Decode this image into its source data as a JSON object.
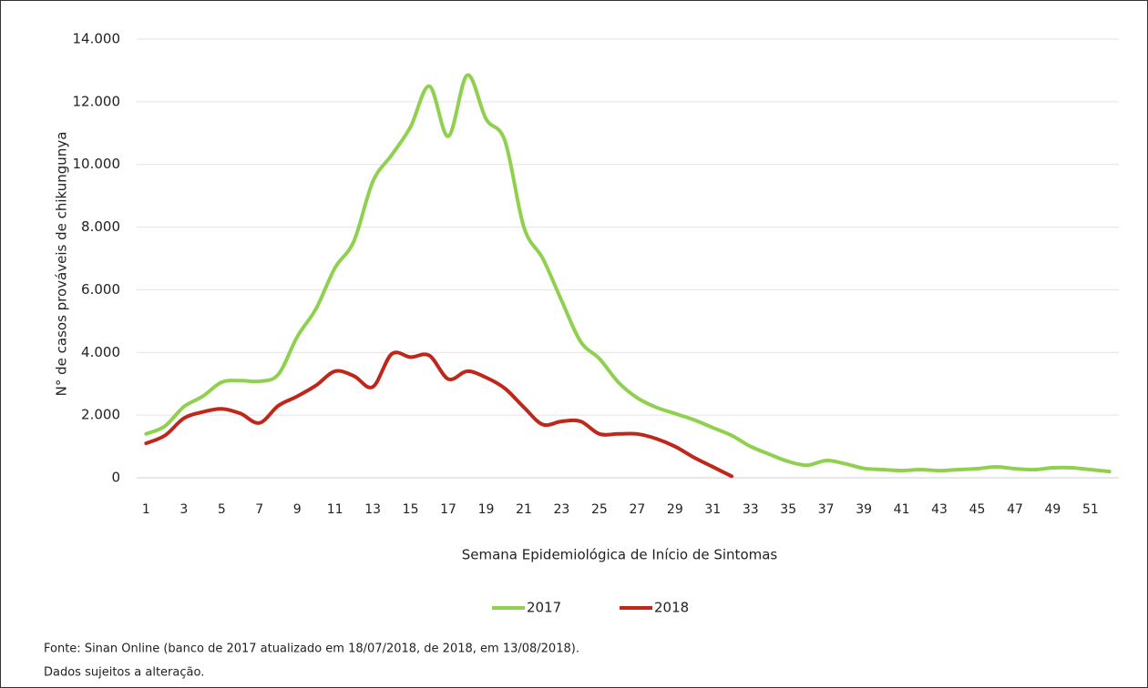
{
  "chart_data": {
    "type": "line",
    "y_label": "N° de casos prováveis de chikungunya",
    "x_label": "Semana Epidemiológica de Início de Sintomas",
    "x": [
      1,
      2,
      3,
      4,
      5,
      6,
      7,
      8,
      9,
      10,
      11,
      12,
      13,
      14,
      15,
      16,
      17,
      18,
      19,
      20,
      21,
      22,
      23,
      24,
      25,
      26,
      27,
      28,
      29,
      30,
      31,
      32,
      33,
      34,
      35,
      36,
      37,
      38,
      39,
      40,
      41,
      42,
      43,
      44,
      45,
      46,
      47,
      48,
      49,
      50,
      51,
      52
    ],
    "xlim": [
      0.5,
      52.5
    ],
    "xticks": [
      1,
      3,
      5,
      7,
      9,
      11,
      13,
      15,
      17,
      19,
      21,
      23,
      25,
      27,
      29,
      31,
      33,
      35,
      37,
      39,
      41,
      43,
      45,
      47,
      49,
      51
    ],
    "ylim": [
      0,
      14000
    ],
    "yticks": [
      0,
      {
        "value": 2000,
        "label": "2.000"
      },
      {
        "value": 4000,
        "label": "4.000"
      },
      {
        "value": 6000,
        "label": "6.000"
      },
      {
        "value": 8000,
        "label": "8.000"
      },
      {
        "value": 10000,
        "label": "10.000"
      },
      {
        "value": 12000,
        "label": "12.000"
      },
      {
        "value": 14000,
        "label": "14.000"
      }
    ],
    "grid": true,
    "legend": "bottom",
    "series": [
      {
        "name": "2017",
        "color": "#8fd14f",
        "values": [
          1400,
          1650,
          2270,
          2600,
          3050,
          3100,
          3080,
          3300,
          4500,
          5400,
          6700,
          7550,
          9450,
          10300,
          11200,
          12500,
          10900,
          12850,
          11450,
          10750,
          8000,
          7000,
          5650,
          4350,
          3800,
          3050,
          2550,
          2250,
          2050,
          1850,
          1600,
          1350,
          1000,
          750,
          520,
          400,
          550,
          450,
          300,
          260,
          230,
          260,
          230,
          260,
          290,
          350,
          290,
          260,
          320,
          320,
          260,
          200
        ]
      },
      {
        "name": "2018",
        "color": "#c0271b",
        "values": [
          1100,
          1350,
          1900,
          2100,
          2200,
          2050,
          1750,
          2300,
          2600,
          2950,
          3400,
          3250,
          2900,
          3950,
          3850,
          3900,
          3150,
          3400,
          3200,
          2850,
          2250,
          1700,
          1800,
          1800,
          1400,
          1400,
          1400,
          1250,
          1000,
          650,
          350,
          50,
          null,
          null,
          null,
          null,
          null,
          null,
          null,
          null,
          null,
          null,
          null,
          null,
          null,
          null,
          null,
          null,
          null,
          null,
          null,
          null
        ]
      }
    ],
    "notes": [
      "Fonte: Sinan Online (banco de 2017 atualizado em 18/07/2018, de 2018, em 13/08/2018).",
      "Dados sujeitos a alteração."
    ]
  }
}
